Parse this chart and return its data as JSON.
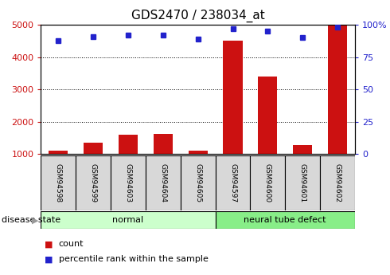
{
  "title": "GDS2470 / 238034_at",
  "samples": [
    "GSM94598",
    "GSM94599",
    "GSM94603",
    "GSM94604",
    "GSM94605",
    "GSM94597",
    "GSM94600",
    "GSM94601",
    "GSM94602"
  ],
  "counts": [
    1100,
    1350,
    1600,
    1620,
    1100,
    4500,
    3400,
    1280,
    4980
  ],
  "percentile_ranks": [
    88,
    91,
    92,
    92,
    89,
    97,
    95,
    90,
    98
  ],
  "groups": [
    {
      "label": "normal",
      "start": 0,
      "end": 5,
      "color": "#ccffcc"
    },
    {
      "label": "neural tube defect",
      "start": 5,
      "end": 9,
      "color": "#88ee88"
    }
  ],
  "ylim_left": [
    1000,
    5000
  ],
  "ylim_right": [
    0,
    100
  ],
  "yticks_left": [
    1000,
    2000,
    3000,
    4000,
    5000
  ],
  "yticks_right": [
    0,
    25,
    50,
    75,
    100
  ],
  "bar_color": "#cc1111",
  "dot_color": "#2222cc",
  "grid_color": "#000000",
  "left_tick_color": "#cc1111",
  "right_tick_color": "#2222cc",
  "title_fontsize": 11,
  "tick_fontsize": 8,
  "sample_fontsize": 6.5,
  "group_fontsize": 8,
  "legend_count_label": "count",
  "legend_pct_label": "percentile rank within the sample",
  "disease_state_label": "disease state",
  "box_color": "#d8d8d8",
  "bar_bottom": 1000
}
